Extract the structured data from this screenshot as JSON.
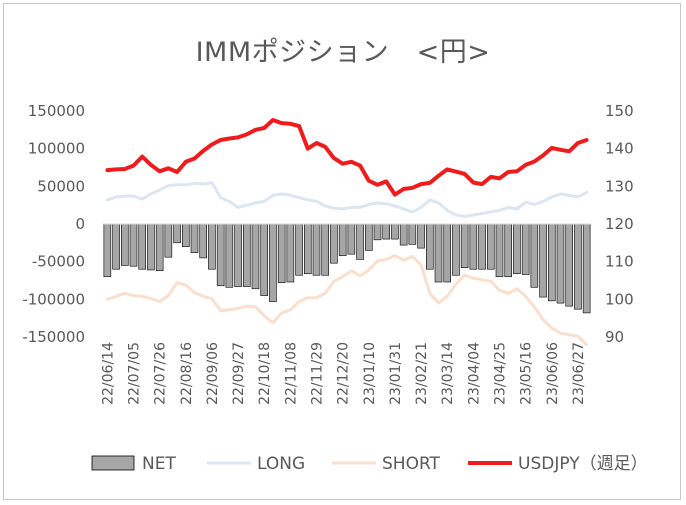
{
  "chart_data": {
    "type": "bar+line",
    "title": "IMMポジション　<円>",
    "left_axis": {
      "min": -150000,
      "max": 150000,
      "step": 50000,
      "ticks": [
        "150000",
        "100000",
        "50000",
        "0",
        "-50000",
        "-100000",
        "-150000"
      ]
    },
    "right_axis": {
      "min": 90,
      "max": 150,
      "step": 10,
      "ticks": [
        "150",
        "140",
        "130",
        "120",
        "110",
        "100",
        "90"
      ]
    },
    "x_tick_labels": [
      "22/06/14",
      "22/07/05",
      "22/07/26",
      "22/08/16",
      "22/09/06",
      "22/09/27",
      "22/10/18",
      "22/11/08",
      "22/11/29",
      "22/12/20",
      "23/01/10",
      "23/01/31",
      "23/02/21",
      "23/03/14",
      "23/04/04",
      "23/04/25",
      "23/05/16",
      "23/06/06",
      "23/06/27"
    ],
    "grid": false,
    "legend_position": "bottom",
    "series": [
      {
        "name": "NET",
        "kind": "bar",
        "axis": "left",
        "color": "#a6a6a6",
        "values": [
          -70000,
          -60000,
          -55000,
          -56000,
          -60000,
          -61000,
          -62000,
          -44000,
          -25000,
          -30000,
          -38000,
          -45000,
          -60000,
          -82000,
          -84000,
          -83000,
          -83000,
          -86000,
          -95000,
          -103000,
          -78000,
          -77000,
          -68000,
          -66000,
          -68000,
          -68000,
          -52000,
          -42000,
          -40000,
          -47000,
          -35000,
          -21000,
          -20000,
          -20000,
          -28000,
          -27000,
          -32000,
          -60000,
          -77000,
          -77000,
          -68000,
          -58000,
          -60000,
          -60000,
          -60000,
          -70000,
          -70000,
          -66000,
          -67000,
          -84000,
          -97000,
          -102000,
          -105000,
          -109000,
          -113000,
          -118000
        ]
      },
      {
        "name": "LONG",
        "kind": "line",
        "axis": "left",
        "color": "#dce6f1",
        "values": [
          32000,
          36000,
          37000,
          37000,
          33000,
          40000,
          45000,
          51000,
          52000,
          52000,
          54000,
          53000,
          55000,
          35000,
          30000,
          22000,
          25000,
          28000,
          30000,
          38000,
          40000,
          38000,
          35000,
          32000,
          30000,
          24000,
          21000,
          20000,
          22000,
          22000,
          26000,
          28000,
          27000,
          24000,
          20000,
          16000,
          22000,
          32000,
          28000,
          18000,
          12000,
          10000,
          12000,
          14000,
          16000,
          18000,
          22000,
          20000,
          29000,
          26000,
          30000,
          36000,
          40000,
          38000,
          36000,
          42000
        ]
      },
      {
        "name": "SHORT",
        "kind": "line",
        "axis": "left",
        "color": "#fadfcf",
        "values": [
          -100000,
          -96000,
          -92000,
          -95000,
          -96000,
          -99000,
          -103000,
          -95000,
          -78000,
          -81000,
          -91000,
          -96000,
          -99000,
          -115000,
          -114000,
          -112000,
          -109000,
          -110000,
          -122000,
          -131000,
          -118000,
          -114000,
          -103000,
          -98000,
          -98000,
          -92000,
          -76000,
          -70000,
          -62000,
          -69000,
          -61000,
          -49000,
          -47000,
          -42000,
          -48000,
          -43000,
          -54000,
          -92000,
          -105000,
          -96000,
          -80000,
          -68000,
          -72000,
          -74000,
          -76000,
          -88000,
          -92000,
          -86000,
          -96000,
          -110000,
          -127000,
          -138000,
          -145000,
          -147000,
          -149000,
          -160000
        ]
      },
      {
        "name": "USDJPY（週足）",
        "kind": "line",
        "axis": "right",
        "color": "#ee1c1c",
        "values": [
          134.3,
          134.5,
          134.6,
          135.5,
          137.9,
          135.7,
          134.0,
          134.8,
          133.8,
          136.5,
          137.4,
          139.4,
          141.1,
          142.3,
          142.7,
          143.0,
          143.8,
          145.0,
          145.5,
          147.6,
          146.8,
          146.6,
          146.0,
          140.0,
          141.5,
          140.5,
          137.5,
          136.0,
          136.5,
          135.5,
          131.5,
          130.4,
          131.3,
          127.8,
          129.3,
          129.6,
          130.6,
          130.9,
          132.8,
          134.5,
          133.9,
          133.3,
          131.0,
          130.6,
          132.5,
          132.1,
          133.8,
          134.0,
          135.7,
          136.6,
          138.2,
          140.2,
          139.7,
          139.3,
          141.5,
          142.3
        ]
      }
    ]
  }
}
